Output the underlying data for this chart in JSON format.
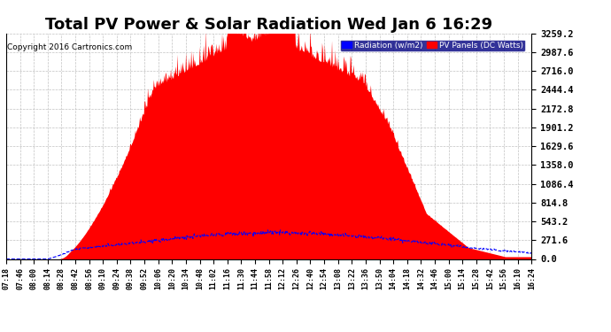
{
  "title": "Total PV Power & Solar Radiation Wed Jan 6 16:29",
  "copyright": "Copyright 2016 Cartronics.com",
  "yticks": [
    0.0,
    271.6,
    543.2,
    814.8,
    1086.4,
    1358.0,
    1629.6,
    1901.2,
    2172.8,
    2444.4,
    2716.0,
    2987.6,
    3259.2
  ],
  "ymax": 3259.2,
  "ymin": 0.0,
  "legend_labels": [
    "Radiation (w/m2)",
    "PV Panels (DC Watts)"
  ],
  "background_color": "#ffffff",
  "grid_color": "#bbbbbb",
  "title_fontsize": 13,
  "xtick_labels": [
    "07:18",
    "07:46",
    "08:00",
    "08:14",
    "08:28",
    "08:42",
    "08:56",
    "09:10",
    "09:24",
    "09:38",
    "09:52",
    "10:06",
    "10:20",
    "10:34",
    "10:48",
    "11:02",
    "11:16",
    "11:30",
    "11:44",
    "11:58",
    "12:12",
    "12:26",
    "12:40",
    "12:54",
    "13:08",
    "13:22",
    "13:36",
    "13:50",
    "14:04",
    "14:18",
    "14:32",
    "14:46",
    "15:00",
    "15:14",
    "15:28",
    "15:42",
    "15:56",
    "16:10",
    "16:24"
  ],
  "n_points": 800,
  "pv_peak": 3259.2,
  "radiation_peak": 380,
  "pv_seed": 7,
  "rad_seed": 13
}
